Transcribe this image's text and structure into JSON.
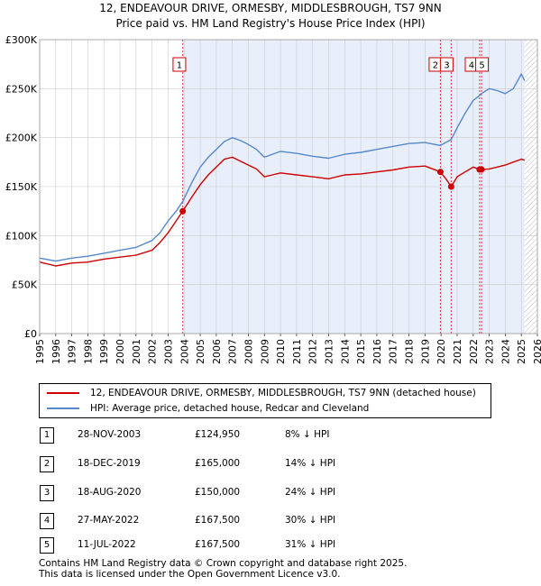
{
  "title_line1": "12, ENDEAVOUR DRIVE, ORMESBY, MIDDLESBROUGH, TS7 9NN",
  "title_line2": "Price paid vs. HM Land Registry's House Price Index (HPI)",
  "legend": {
    "property_label": "12, ENDEAVOUR DRIVE, ORMESBY, MIDDLESBROUGH, TS7 9NN (detached house)",
    "hpi_label": "HPI: Average price, detached house, Redcar and Cleveland"
  },
  "transactions": [
    {
      "num": "1",
      "date": "28-NOV-2003",
      "price": "£124,950",
      "hpi": "8% ↓ HPI"
    },
    {
      "num": "2",
      "date": "18-DEC-2019",
      "price": "£165,000",
      "hpi": "14% ↓ HPI"
    },
    {
      "num": "3",
      "date": "18-AUG-2020",
      "price": "£150,000",
      "hpi": "24% ↓ HPI"
    },
    {
      "num": "4",
      "date": "27-MAY-2022",
      "price": "£167,500",
      "hpi": "30% ↓ HPI"
    },
    {
      "num": "5",
      "date": "11-JUL-2022",
      "price": "£167,500",
      "hpi": "31% ↓ HPI"
    }
  ],
  "footer_line1": "Contains HM Land Registry data © Crown copyright and database right 2025.",
  "footer_line2": "This data is licensed under the Open Government Licence v3.0.",
  "colors": {
    "property": "#cc0000",
    "hpi": "#5588cc",
    "shade": "#e8eefa",
    "grid": "#cccccc"
  },
  "chart_data": {
    "type": "line",
    "xlim": [
      1995,
      2026
    ],
    "ylim": [
      0,
      300000
    ],
    "x_ticks": [
      "1995",
      "1996",
      "1997",
      "1998",
      "1999",
      "2000",
      "2001",
      "2002",
      "2003",
      "2004",
      "2005",
      "2006",
      "2007",
      "2008",
      "2009",
      "2010",
      "2011",
      "2012",
      "2013",
      "2014",
      "2015",
      "2016",
      "2017",
      "2018",
      "2019",
      "2020",
      "2021",
      "2022",
      "2023",
      "2024",
      "2025",
      "2026"
    ],
    "y_ticks": [
      {
        "value": 0,
        "label": "£0"
      },
      {
        "value": 50000,
        "label": "£50K"
      },
      {
        "value": 100000,
        "label": "£100K"
      },
      {
        "value": 150000,
        "label": "£150K"
      },
      {
        "value": 200000,
        "label": "£200K"
      },
      {
        "value": 250000,
        "label": "£250K"
      },
      {
        "value": 300000,
        "label": "£300K"
      }
    ],
    "grid": true,
    "shaded_ranges": [
      [
        2003.91,
        2025.2
      ]
    ],
    "hatched_from": 2025.2,
    "markers": [
      {
        "num": "1",
        "x": 2003.91,
        "y": 124950,
        "label_x": 2003.7
      },
      {
        "num": "2",
        "x": 2019.96,
        "y": 165000,
        "label_x": 2019.65
      },
      {
        "num": "3",
        "x": 2020.63,
        "y": 150000,
        "label_x": 2020.35
      },
      {
        "num": "4",
        "x": 2022.4,
        "y": 167500,
        "label_x": 2021.9
      },
      {
        "num": "5",
        "x": 2022.52,
        "y": 167500,
        "label_x": 2022.55
      }
    ],
    "series": [
      {
        "name": "12, ENDEAVOUR DRIVE, ORMESBY, MIDDLESBROUGH, TS7 9NN (detached house)",
        "x": [
          1995,
          1996,
          1997,
          1998,
          1999,
          2000,
          2001,
          2002,
          2002.5,
          2003,
          2003.5,
          2003.91,
          2004.5,
          2005,
          2005.5,
          2006,
          2006.5,
          2007,
          2007.5,
          2008,
          2008.5,
          2009,
          2009.5,
          2010,
          2011,
          2012,
          2013,
          2014,
          2015,
          2016,
          2017,
          2018,
          2019,
          2019.96,
          2020.3,
          2020.63,
          2021,
          2021.5,
          2022,
          2022.4,
          2022.52,
          2023,
          2023.5,
          2024,
          2024.5,
          2025,
          2025.2
        ],
        "y": [
          73000,
          69000,
          72000,
          73000,
          76000,
          78000,
          80000,
          85000,
          93000,
          103000,
          115000,
          124950,
          140000,
          152000,
          162000,
          170000,
          178000,
          180000,
          176000,
          172000,
          168000,
          160000,
          162000,
          164000,
          162000,
          160000,
          158000,
          162000,
          163000,
          165000,
          167000,
          170000,
          171000,
          165000,
          158000,
          150000,
          160000,
          165000,
          170000,
          167500,
          167500,
          168000,
          170000,
          172000,
          175000,
          178000,
          177000
        ]
      },
      {
        "name": "HPI: Average price, detached house, Redcar and Cleveland",
        "x": [
          1995,
          1996,
          1997,
          1998,
          1999,
          2000,
          2001,
          2002,
          2002.5,
          2003,
          2003.5,
          2003.91,
          2004.5,
          2005,
          2005.5,
          2006,
          2006.5,
          2007,
          2007.5,
          2008,
          2008.5,
          2009,
          2009.5,
          2010,
          2011,
          2012,
          2013,
          2014,
          2015,
          2016,
          2017,
          2018,
          2019,
          2019.96,
          2020.63,
          2021,
          2021.5,
          2022,
          2022.4,
          2022.52,
          2023,
          2023.5,
          2024,
          2024.5,
          2025,
          2025.2
        ],
        "y": [
          77000,
          74000,
          77000,
          79000,
          82000,
          85000,
          88000,
          95000,
          103000,
          115000,
          125000,
          135000,
          155000,
          170000,
          180000,
          188000,
          196000,
          200000,
          197000,
          193000,
          188000,
          180000,
          183000,
          186000,
          184000,
          181000,
          179000,
          183000,
          185000,
          188000,
          191000,
          194000,
          195000,
          192000,
          198000,
          210000,
          225000,
          238000,
          243000,
          245000,
          250000,
          248000,
          245000,
          250000,
          265000,
          258000
        ]
      }
    ]
  }
}
